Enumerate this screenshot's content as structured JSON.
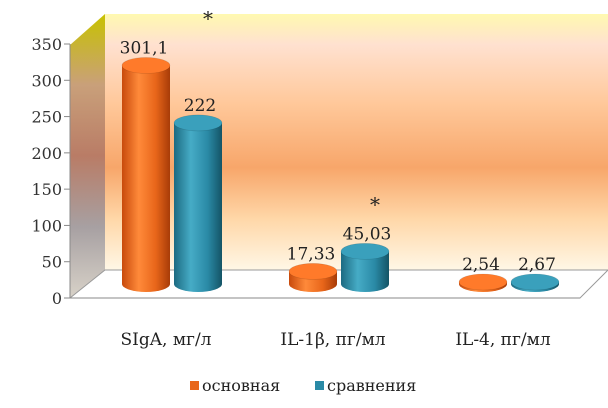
{
  "chart_data": {
    "type": "bar",
    "title": "",
    "xlabel": "",
    "ylabel": "",
    "ylim": [
      0,
      350
    ],
    "yticks": [
      0,
      50,
      100,
      150,
      200,
      250,
      300,
      350
    ],
    "grid": false,
    "legend_position": "bottom",
    "categories": [
      "SIgA, мг/л",
      "IL-1β, пг/мл",
      "IL-4, пг/мл"
    ],
    "series": [
      {
        "name": "основная",
        "color": "#e8661a",
        "values": [
          301.1,
          17.33,
          2.54
        ],
        "value_labels": [
          "301,1",
          "17,33",
          "2,54"
        ]
      },
      {
        "name": "сравнения",
        "color": "#2a8aa6",
        "values": [
          222,
          45.03,
          2.67
        ],
        "value_labels": [
          "222",
          "45,03",
          "2,67"
        ]
      }
    ],
    "annotations": [
      {
        "text": "*",
        "category": "SIgA, мг/л"
      },
      {
        "text": "*",
        "category": "IL-1β, пг/мл"
      }
    ]
  }
}
